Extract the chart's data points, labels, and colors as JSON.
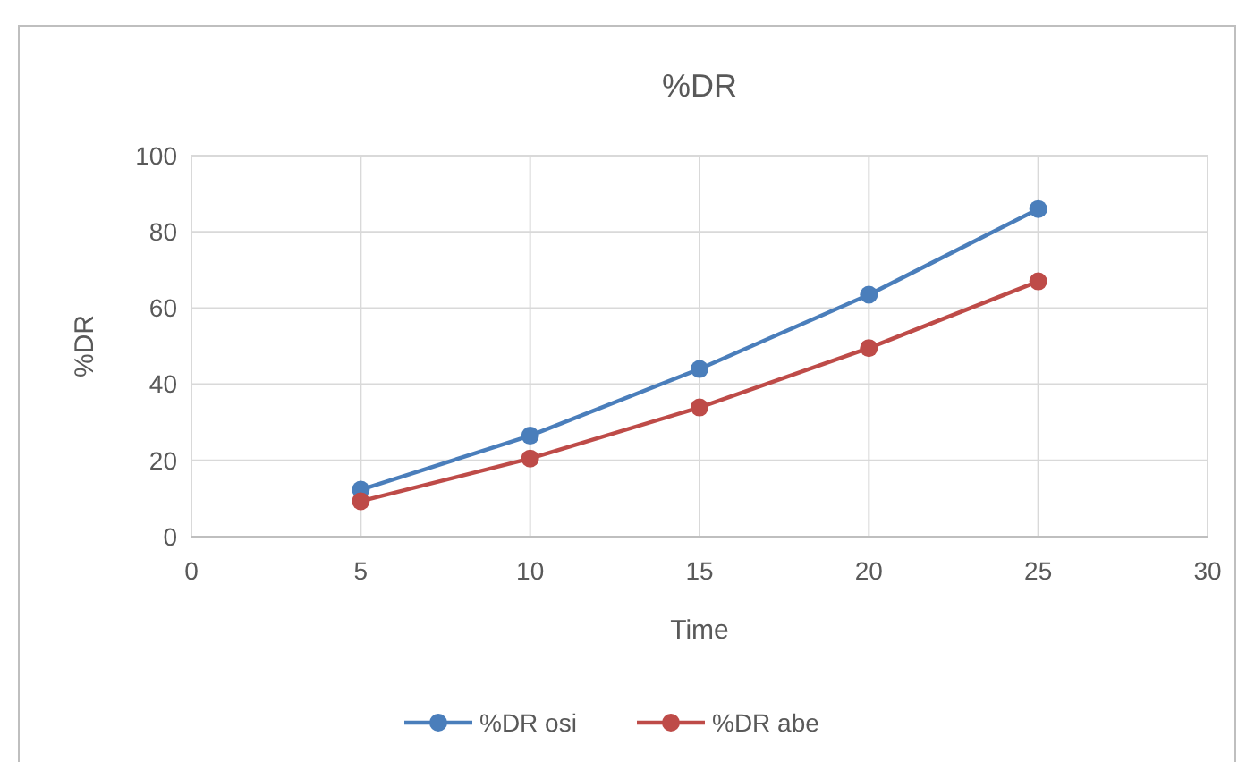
{
  "chart_data": {
    "type": "line",
    "title": "%DR",
    "xlabel": "Time",
    "ylabel": "%DR",
    "x": [
      5,
      10,
      15,
      20,
      25
    ],
    "series": [
      {
        "name": "%DR osi",
        "color": "#4a7ebb",
        "values": [
          12.3,
          26.5,
          44,
          63.5,
          86
        ]
      },
      {
        "name": "%DR abe",
        "color": "#be4b48",
        "values": [
          9.3,
          20.5,
          33.9,
          49.5,
          67
        ]
      }
    ],
    "xlim": [
      0,
      30
    ],
    "xticks": [
      0,
      5,
      10,
      15,
      20,
      25,
      30
    ],
    "ylim": [
      0,
      100
    ],
    "yticks": [
      0,
      20,
      40,
      60,
      80,
      100
    ],
    "grid": true,
    "legend": "bottom",
    "marker": "circle",
    "line_style": "solid"
  }
}
